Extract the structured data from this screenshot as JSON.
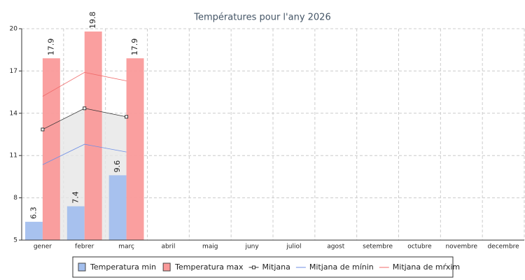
{
  "chart_data": {
    "type": "bar",
    "title": "Températures pour l'any 2026",
    "categories": [
      "gener",
      "febrer",
      "març",
      "abril",
      "maig",
      "juny",
      "juliol",
      "agost",
      "setembre",
      "octubre",
      "novembre",
      "decembre"
    ],
    "series": [
      {
        "name": "Temperatura min",
        "type": "bar",
        "color": "#a3bfee",
        "values": [
          6.3,
          7.4,
          9.6,
          null,
          null,
          null,
          null,
          null,
          null,
          null,
          null,
          null
        ]
      },
      {
        "name": "Temperatura max",
        "type": "bar",
        "color": "#fa9a9a",
        "values": [
          17.9,
          19.8,
          17.9,
          null,
          null,
          null,
          null,
          null,
          null,
          null,
          null,
          null
        ]
      },
      {
        "name": "Mitjana",
        "type": "line",
        "color": "#333333",
        "area": true,
        "markers": true,
        "values": [
          12.85,
          14.35,
          13.75,
          null,
          null,
          null,
          null,
          null,
          null,
          null,
          null,
          null
        ]
      },
      {
        "name": "Mitjana de mínin",
        "type": "line",
        "color": "#6f8fe6",
        "values": [
          10.35,
          11.8,
          11.25,
          null,
          null,
          null,
          null,
          null,
          null,
          null,
          null,
          null
        ]
      },
      {
        "name": "Mitjana de mŕxim",
        "type": "line",
        "color": "#f06a6a",
        "values": [
          15.2,
          16.9,
          16.3,
          null,
          null,
          null,
          null,
          null,
          null,
          null,
          null,
          null
        ]
      }
    ],
    "ylim": [
      5,
      20
    ],
    "yticks": [
      5,
      8,
      11,
      14,
      17,
      20
    ],
    "grid": true,
    "legend": "bottom"
  }
}
